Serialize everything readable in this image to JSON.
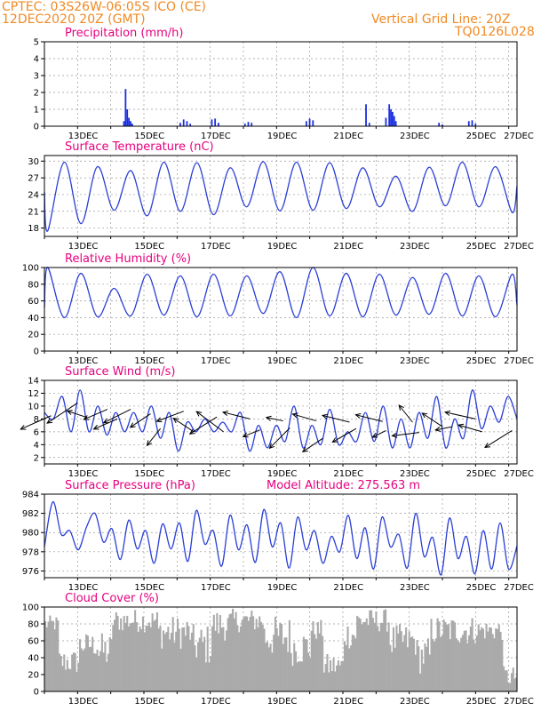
{
  "header": {
    "location": "CPTEC:   03S26W-06:05S   ICO (CE)",
    "run": "12DEC2020 20Z (GMT)",
    "grid_note": "Vertical Grid Line: 20Z",
    "code": "TQ0126L028"
  },
  "colors": {
    "line": "#2b3fd6",
    "bar": "#1a2ee0",
    "cloud": "#aaaaaa",
    "title": "#e6007e",
    "header": "#f08a24"
  },
  "x_labels": [
    "13DEC",
    "15DEC",
    "17DEC",
    "19DEC",
    "21DEC",
    "23DEC",
    "25DEC",
    "27DEC"
  ],
  "chart_data": [
    {
      "type": "bar",
      "title": "Precipitation (mm/h)",
      "ylim": [
        0,
        5
      ],
      "yticks": [
        "0",
        "1",
        "2",
        "3",
        "4",
        "5"
      ],
      "x_unit": "days since 12DEC2020 20Z",
      "bars": [
        [
          2.4,
          0.3
        ],
        [
          2.45,
          2.2
        ],
        [
          2.5,
          1.0
        ],
        [
          2.55,
          0.5
        ],
        [
          2.6,
          0.3
        ],
        [
          2.65,
          0.15
        ],
        [
          4.1,
          0.2
        ],
        [
          4.2,
          0.4
        ],
        [
          4.3,
          0.3
        ],
        [
          4.4,
          0.15
        ],
        [
          5.05,
          0.4
        ],
        [
          5.15,
          0.45
        ],
        [
          5.25,
          0.2
        ],
        [
          6.05,
          0.15
        ],
        [
          6.15,
          0.25
        ],
        [
          6.25,
          0.2
        ],
        [
          7.9,
          0.3
        ],
        [
          8.0,
          0.45
        ],
        [
          8.1,
          0.35
        ],
        [
          9.7,
          1.3
        ],
        [
          9.8,
          0.2
        ],
        [
          10.3,
          0.5
        ],
        [
          10.4,
          1.3
        ],
        [
          10.45,
          1.0
        ],
        [
          10.5,
          0.85
        ],
        [
          10.55,
          0.6
        ],
        [
          10.6,
          0.3
        ],
        [
          11.9,
          0.2
        ],
        [
          12.0,
          0.1
        ],
        [
          12.8,
          0.3
        ],
        [
          12.9,
          0.35
        ],
        [
          13.0,
          0.15
        ]
      ]
    },
    {
      "type": "line",
      "title": "Surface Temperature (nC)",
      "ylim": [
        16.5,
        31
      ],
      "yticks": [
        "18",
        "21",
        "24",
        "27",
        "30"
      ],
      "peaks": [
        28.5,
        29.8,
        29.0,
        28.3,
        29.8,
        29.7,
        28.8,
        29.9,
        29.8,
        29.7,
        28.8,
        27.3,
        28.9,
        29.8,
        29.0,
        30.3
      ],
      "troughs": [
        17.5,
        18.8,
        21.2,
        20.2,
        21.0,
        20.4,
        21.8,
        21.1,
        21.2,
        21.5,
        21.8,
        21.0,
        22.0,
        21.8,
        20.8,
        20.5
      ]
    },
    {
      "type": "line",
      "title": "Relative Humidity (%)",
      "ylim": [
        0,
        100
      ],
      "yticks": [
        "0",
        "20",
        "40",
        "60",
        "80",
        "100"
      ],
      "peaks": [
        100,
        93,
        75,
        92,
        90,
        92,
        90,
        95,
        100,
        93,
        92,
        88,
        93,
        90,
        92,
        88
      ],
      "troughs": [
        40,
        41,
        42,
        43,
        41,
        42,
        45,
        40,
        42,
        41,
        43,
        44,
        42,
        41,
        42,
        38
      ]
    },
    {
      "type": "line",
      "title": "Surface Wind (m/s)",
      "ylim": [
        1,
        14
      ],
      "yticks": [
        "2",
        "4",
        "6",
        "8",
        "10",
        "12",
        "14"
      ],
      "series": [
        9,
        8,
        11.5,
        6,
        12.5,
        6,
        10,
        5.5,
        9,
        6,
        9,
        6,
        10,
        5,
        9,
        3,
        7.5,
        6,
        8,
        6,
        7.5,
        6,
        9,
        3,
        7,
        3.5,
        7,
        4.5,
        10,
        3.5,
        7,
        4,
        9.5,
        4,
        6,
        4.5,
        9,
        4.5,
        10,
        3.5,
        8,
        3.5,
        9,
        5,
        11.5,
        3.5,
        8,
        5,
        12.5,
        6.5,
        10,
        7.5,
        11.5,
        8
      ]
    },
    {
      "type": "line",
      "title": "Surface Pressure (hPa)",
      "annotation": "Model Altitude: 275.563  m",
      "ylim": [
        975.3,
        984
      ],
      "yticks": [
        "976",
        "978",
        "980",
        "982",
        "984"
      ],
      "series": [
        978.5,
        983.2,
        979.8,
        980.2,
        978.2,
        980.6,
        982.0,
        979.0,
        980.4,
        977.2,
        981.3,
        978.3,
        980.2,
        976.8,
        980.9,
        978.3,
        981.0,
        977.0,
        982.3,
        978.8,
        980.2,
        976.5,
        981.8,
        978.2,
        980.8,
        976.9,
        982.4,
        978.5,
        981.0,
        976.3,
        981.6,
        978.2,
        980.2,
        976.8,
        979.6,
        978.0,
        981.8,
        977.3,
        980.5,
        976.2,
        981.6,
        978.5,
        979.8,
        976.3,
        982.0,
        977.5,
        979.5,
        975.6,
        981.5,
        977.3,
        979.6,
        975.7,
        980.2,
        976.2,
        981.0,
        976.2,
        978.6
      ]
    },
    {
      "type": "area",
      "title": "Cloud Cover (%)",
      "ylim": [
        0,
        100
      ],
      "yticks": [
        "0",
        "20",
        "40",
        "60",
        "80",
        "100"
      ]
    }
  ]
}
